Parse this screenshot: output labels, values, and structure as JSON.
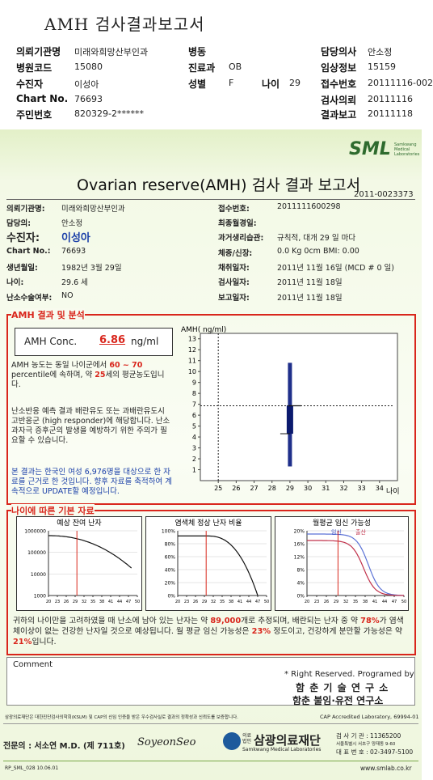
{
  "top": {
    "title": "AMH 검사결과보고서",
    "fields": [
      {
        "label": "의뢰기관명",
        "value": "미래와희망산부인과"
      },
      {
        "label": "병원코드",
        "value": "15080"
      },
      {
        "label": "수진자",
        "value": "이성아"
      },
      {
        "label": "Chart No.",
        "value": "76693"
      },
      {
        "label": "주민번호",
        "value": "820329-2******"
      },
      {
        "label": "병동"
      },
      {
        "label": "진료과",
        "value": "OB"
      },
      {
        "label": "성별",
        "value": "F"
      },
      {
        "label": "나이",
        "value": "29"
      },
      {
        "label": "담당의사",
        "value": "안소정"
      },
      {
        "label": "임상정보",
        "value": "15159"
      },
      {
        "label": "접수번호",
        "value": "20111116-002"
      },
      {
        "label": "검사의뢰",
        "value": "20111116"
      },
      {
        "label": "결과보고",
        "value": "20111118"
      }
    ]
  },
  "report": {
    "logo": "SML",
    "logo_sub": "Samkwang Medical Laboratories",
    "title": "Ovarian reserve(AMH) 검사 결과 보고서",
    "number": "2011-0023373",
    "left_fields": [
      {
        "label": "의뢰기관명:",
        "value": "미래와희망산부인과"
      },
      {
        "label": "담당의:",
        "value": "안소정"
      },
      {
        "label": "수진자:",
        "value": "이성아"
      },
      {
        "label": "Chart No.:",
        "value": "76693"
      },
      {
        "label": "생년월일:",
        "value": "1982년 3월 29일"
      },
      {
        "label": "나이:",
        "value": "29.6 세"
      },
      {
        "label": "난소수술여부:",
        "value": "NO"
      }
    ],
    "right_fields": [
      {
        "label": "접수번호:",
        "value": "2011111600298"
      },
      {
        "label": "최종월경일:"
      },
      {
        "label": "과거생리습관:",
        "value": "규칙적, 대개  29 일 마다"
      },
      {
        "label": "체중/신장:",
        "value": "0.0 Kg      0cm    BMI:  0.00"
      },
      {
        "label": "채취일자:",
        "value": "2011년 11월 16일 (MCD #  0 일)"
      },
      {
        "label": "검사일자:",
        "value": "2011년 11월 18일"
      },
      {
        "label": "보고일자:",
        "value": "2011년 11월 18일"
      }
    ]
  },
  "amh": {
    "heading": "AMH 결과 및 분석",
    "conc_label": "AMH Conc.",
    "conc_value": 6.86,
    "conc_unit": "ng/ml",
    "text1": [
      "AMH 농도는 동일 나이군에서 ",
      "60 ~ 70",
      " percentile에 속하며, 약 ",
      "25",
      "세의 평균농도입니다."
    ],
    "text2": "난소반응 예측 결과 배란유도 또는 과배란유도시 고반응군 (high responder)에 해당합니다. 난소과자극 증후군의 발생을 예방하기 위한 주의가 필요할 수 있습니다.",
    "text3": "본 결과는 한국인 여성 6,976명을 대상으로 한 자료를 근거로 한 것입니다. 향후 자료를 축적하여 계속적으로 UPDATE할 예정입니다.",
    "chart": {
      "type": "box",
      "ylabel": "AMH( ng/ml)",
      "xlabel": "나이",
      "xlim": [
        24,
        35
      ],
      "xticks": [
        25,
        26,
        27,
        28,
        29,
        30,
        31,
        32,
        33,
        34
      ],
      "ylim": [
        0,
        13.5
      ],
      "yticks": [
        1,
        2,
        3,
        4,
        5,
        6,
        7,
        8,
        9,
        10,
        11,
        12,
        13
      ],
      "x": 29,
      "whisker_low": 1.3,
      "q1": 4.3,
      "q3": 6.9,
      "whisker_high": 10.8,
      "value": 6.86
    }
  },
  "basic": {
    "heading": "나이에 따른 기본 자료",
    "charts": [
      {
        "type": "line",
        "title": "예상 잔여 난자",
        "log": true,
        "xlim": [
          20,
          50
        ],
        "xticks": [
          20,
          23,
          26,
          29,
          32,
          35,
          38,
          41,
          44,
          47,
          50
        ],
        "ylim": [
          1000,
          1000000
        ],
        "yticks": [
          1000,
          10000,
          100000,
          1000000
        ]
      },
      {
        "type": "line",
        "title": "염색체 정상 난자 비율",
        "xlim": [
          20,
          50
        ],
        "xticks": [
          20,
          23,
          26,
          29,
          32,
          35,
          38,
          41,
          44,
          47,
          50
        ],
        "ylim": [
          0,
          100
        ],
        "yticks": [
          {
            "value": 0,
            "label": "0%"
          },
          {
            "value": 20,
            "label": "20%"
          },
          {
            "value": 40,
            "label": "40%"
          },
          {
            "value": 60,
            "label": "60%"
          },
          {
            "value": 80,
            "label": "80%"
          },
          {
            "value": 100,
            "label": "100%"
          }
        ]
      },
      {
        "type": "line",
        "title": "월평균 임신 가능성",
        "legend": [
          "임신",
          "출산"
        ],
        "xlim": [
          20,
          50
        ],
        "xticks": [
          20,
          23,
          26,
          29,
          32,
          35,
          38,
          41,
          44,
          47,
          50
        ],
        "ylim": [
          0,
          20
        ],
        "yticks": [
          {
            "value": 0,
            "label": "0%"
          },
          {
            "value": 4,
            "label": "4%"
          },
          {
            "value": 8,
            "label": "8%"
          },
          {
            "value": 12,
            "label": "12%"
          },
          {
            "value": 16,
            "label": "16%"
          },
          {
            "value": 20,
            "label": "20%"
          }
        ]
      }
    ],
    "summary": [
      "귀하의 나이만을 고려하였을 때 난소에 남아 있는 난자는 약 ",
      "89,000",
      "개로 추정되며, 배란되는 난자 중 약 ",
      "78%",
      "가 염색체이상이 없는 건강한 난자일 것으로 예상됩니다. 월 평균 임신 가능성은 ",
      "23%",
      " 정도이고, 건강하게 분만할 가능성은 약 ",
      "21%",
      "입니다."
    ]
  },
  "comment": {
    "label": "Comment",
    "rights": "* Right Reserved. Programed by",
    "org1": "함 춘 기 술 연 구 소",
    "org2": "함춘 불임·유전 연구소"
  },
  "footer": {
    "notice": "삼광의료재단은 대한진단검사의학회(KSLM) 및 CAP의 신임 인증을 받은 우수검사실로 결과의 정확성과 신뢰도를 보증합니다.",
    "cap": "CAP Accredited Laboratory, 69994-01",
    "doctor": "전문의 : 서소연 M.D. (제 711호)",
    "signature": "SoyeonSeo",
    "org": "삼광의료재단",
    "org_en": "Samkwang Medical Laboratories",
    "org_tag": "의료법인",
    "code": "검 사 기 관 : 11365200",
    "address": "서울특별시 서초구 양재동 9-60",
    "phone": "대 표 번 호 : 02-3497-5100",
    "form": "RP_SML_028  10.06.01",
    "web": "www.smlab.co.kr"
  }
}
